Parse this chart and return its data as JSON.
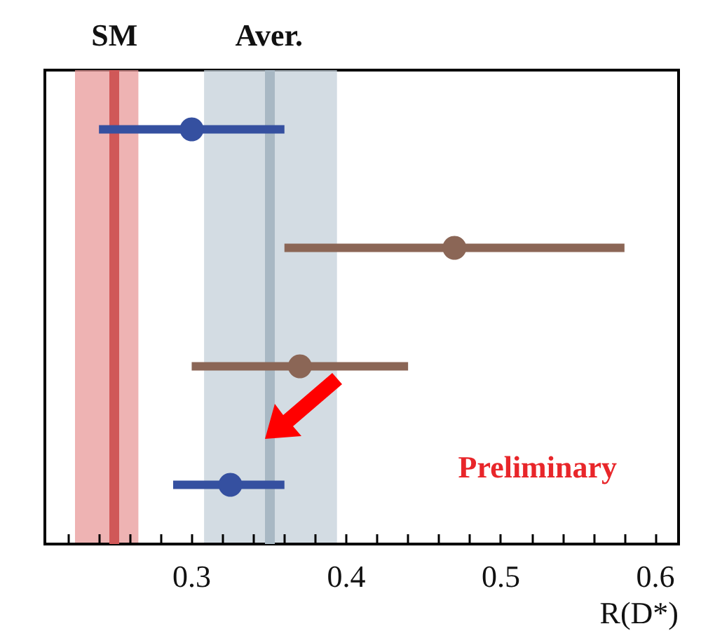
{
  "chart_data": {
    "type": "scatter",
    "orientation": "horizontal",
    "xlabel": "R(D*)",
    "categories": [
      null,
      null,
      null,
      null
    ],
    "series": [
      {
        "color": "#3550a0",
        "values": [
          0.3,
          null,
          null,
          0.325
        ],
        "errors": [
          [
            0.24,
            0.36
          ],
          null,
          null,
          [
            0.288,
            0.36
          ]
        ]
      },
      {
        "color": "#8b6656",
        "values": [
          null,
          0.47,
          0.37,
          null
        ],
        "errors": [
          null,
          [
            0.36,
            0.58
          ],
          [
            0.3,
            0.44
          ],
          null
        ]
      }
    ],
    "xlim": [
      0.205,
      0.615
    ],
    "xticks": [
      {
        "value": 0.22,
        "label": null
      },
      {
        "value": 0.24,
        "label": null
      },
      {
        "value": 0.26,
        "label": null
      },
      {
        "value": 0.28,
        "label": null
      },
      0.3,
      {
        "value": 0.32,
        "label": null
      },
      {
        "value": 0.34,
        "label": null
      },
      {
        "value": 0.36,
        "label": null
      },
      {
        "value": 0.38,
        "label": null
      },
      0.4,
      {
        "value": 0.42,
        "label": null
      },
      {
        "value": 0.44,
        "label": null
      },
      {
        "value": 0.46,
        "label": null
      },
      {
        "value": 0.48,
        "label": null
      },
      0.5,
      {
        "value": 0.52,
        "label": null
      },
      {
        "value": 0.54,
        "label": null
      },
      {
        "value": 0.56,
        "label": null
      },
      {
        "value": 0.58,
        "label": null
      },
      0.6
    ],
    "ref_lines": [
      {
        "axis": "x",
        "value": 0.249,
        "label": "SM",
        "color": "#d05858"
      },
      {
        "axis": "x",
        "value": 0.35,
        "label": "Aver.",
        "color": "#a8b8c4"
      }
    ],
    "bands": [
      {
        "axis": "x",
        "from": 0.2245,
        "to": 0.2655,
        "color": "#e89a9a"
      },
      {
        "axis": "x",
        "from": 0.308,
        "to": 0.394,
        "color": "#c4d0da"
      }
    ],
    "annotations": [
      "Preliminary"
    ],
    "marker": "circle",
    "grid": false,
    "legend": false
  }
}
